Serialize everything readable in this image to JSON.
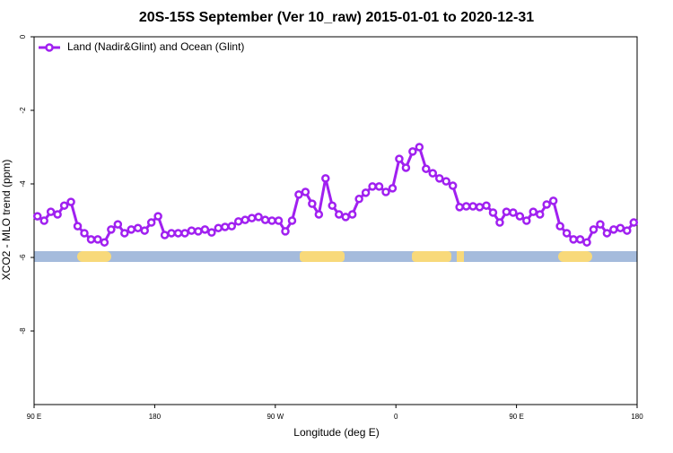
{
  "chart_data": {
    "type": "line",
    "title": "20S-15S September (Ver 10_raw)   2015-01-01 to 2020-12-31",
    "x_label": "Longitude (deg E)",
    "y_label": "XCO2 - MLO trend (ppm)",
    "x": [
      92.5,
      97.5,
      102.5,
      107.5,
      112.5,
      117.5,
      122.5,
      127.5,
      132.5,
      137.5,
      142.5,
      147.5,
      152.5,
      157.5,
      162.5,
      167.5,
      172.5,
      177.5,
      182.5,
      187.5,
      192.5,
      197.5,
      202.5,
      207.5,
      212.5,
      217.5,
      222.5,
      227.5,
      232.5,
      237.5,
      242.5,
      247.5,
      252.5,
      257.5,
      262.5,
      267.5,
      272.5,
      277.5,
      282.5,
      287.5,
      292.5,
      297.5,
      302.5,
      307.5,
      312.5,
      317.5,
      322.5,
      327.5,
      332.5,
      337.5,
      342.5,
      347.5,
      352.5,
      357.5,
      362.5,
      367.5,
      372.5,
      377.5,
      382.5,
      387.5,
      392.5,
      397.5,
      402.5,
      407.5,
      412.5,
      417.5,
      422.5,
      427.5,
      432.5,
      437.5,
      442.5,
      447.5,
      452.5,
      457.5,
      462.5,
      467.5,
      472.5,
      477.5,
      482.5,
      487.5,
      492.5,
      497.5,
      502.5,
      507.5,
      512.5,
      517.5,
      522.5,
      527.5,
      532.5,
      537.5
    ],
    "series": [
      {
        "name": "Land (Nadir&Glint) and Ocean (Glint)",
        "color": "#a020f0",
        "values": [
          -4.88,
          -5.0,
          -4.76,
          -4.83,
          -4.59,
          -4.49,
          -5.15,
          -5.34,
          -5.51,
          -5.51,
          -5.59,
          -5.24,
          -5.1,
          -5.34,
          -5.24,
          -5.2,
          -5.27,
          -5.05,
          -4.88,
          -5.39,
          -5.34,
          -5.34,
          -5.34,
          -5.27,
          -5.29,
          -5.24,
          -5.32,
          -5.2,
          -5.17,
          -5.15,
          -5.02,
          -4.98,
          -4.93,
          -4.9,
          -4.98,
          -5.0,
          -5.0,
          -5.29,
          -5.0,
          -4.29,
          -4.22,
          -4.54,
          -4.83,
          -3.85,
          -4.59,
          -4.83,
          -4.9,
          -4.83,
          -4.41,
          -4.24,
          -4.07,
          -4.07,
          -4.22,
          -4.12,
          -3.32,
          -3.56,
          -3.12,
          -3.0,
          -3.59,
          -3.71,
          -3.85,
          -3.93,
          -4.05,
          -4.63,
          -4.61,
          -4.61,
          -4.63,
          -4.59,
          -4.78,
          -5.05,
          -4.76,
          -4.78,
          -4.88,
          -5.0,
          -4.76,
          -4.83,
          -4.56,
          -4.46,
          -5.15,
          -5.34,
          -5.51,
          -5.51,
          -5.59,
          -5.24,
          -5.1,
          -5.34,
          -5.24,
          -5.2,
          -5.27,
          -5.05
        ]
      }
    ],
    "xlim": [
      90,
      540
    ],
    "xticks": [
      {
        "value": 90,
        "label": "90 E"
      },
      180,
      {
        "value": 270,
        "label": "90 W"
      },
      {
        "value": 360,
        "label": "0"
      },
      {
        "value": 450,
        "label": "90 E"
      },
      {
        "value": 540,
        "label": "180"
      }
    ],
    "ylim": [
      -10,
      0
    ],
    "yticks": [
      0,
      -2,
      -4,
      -6,
      -8
    ],
    "legend": "top-left"
  }
}
